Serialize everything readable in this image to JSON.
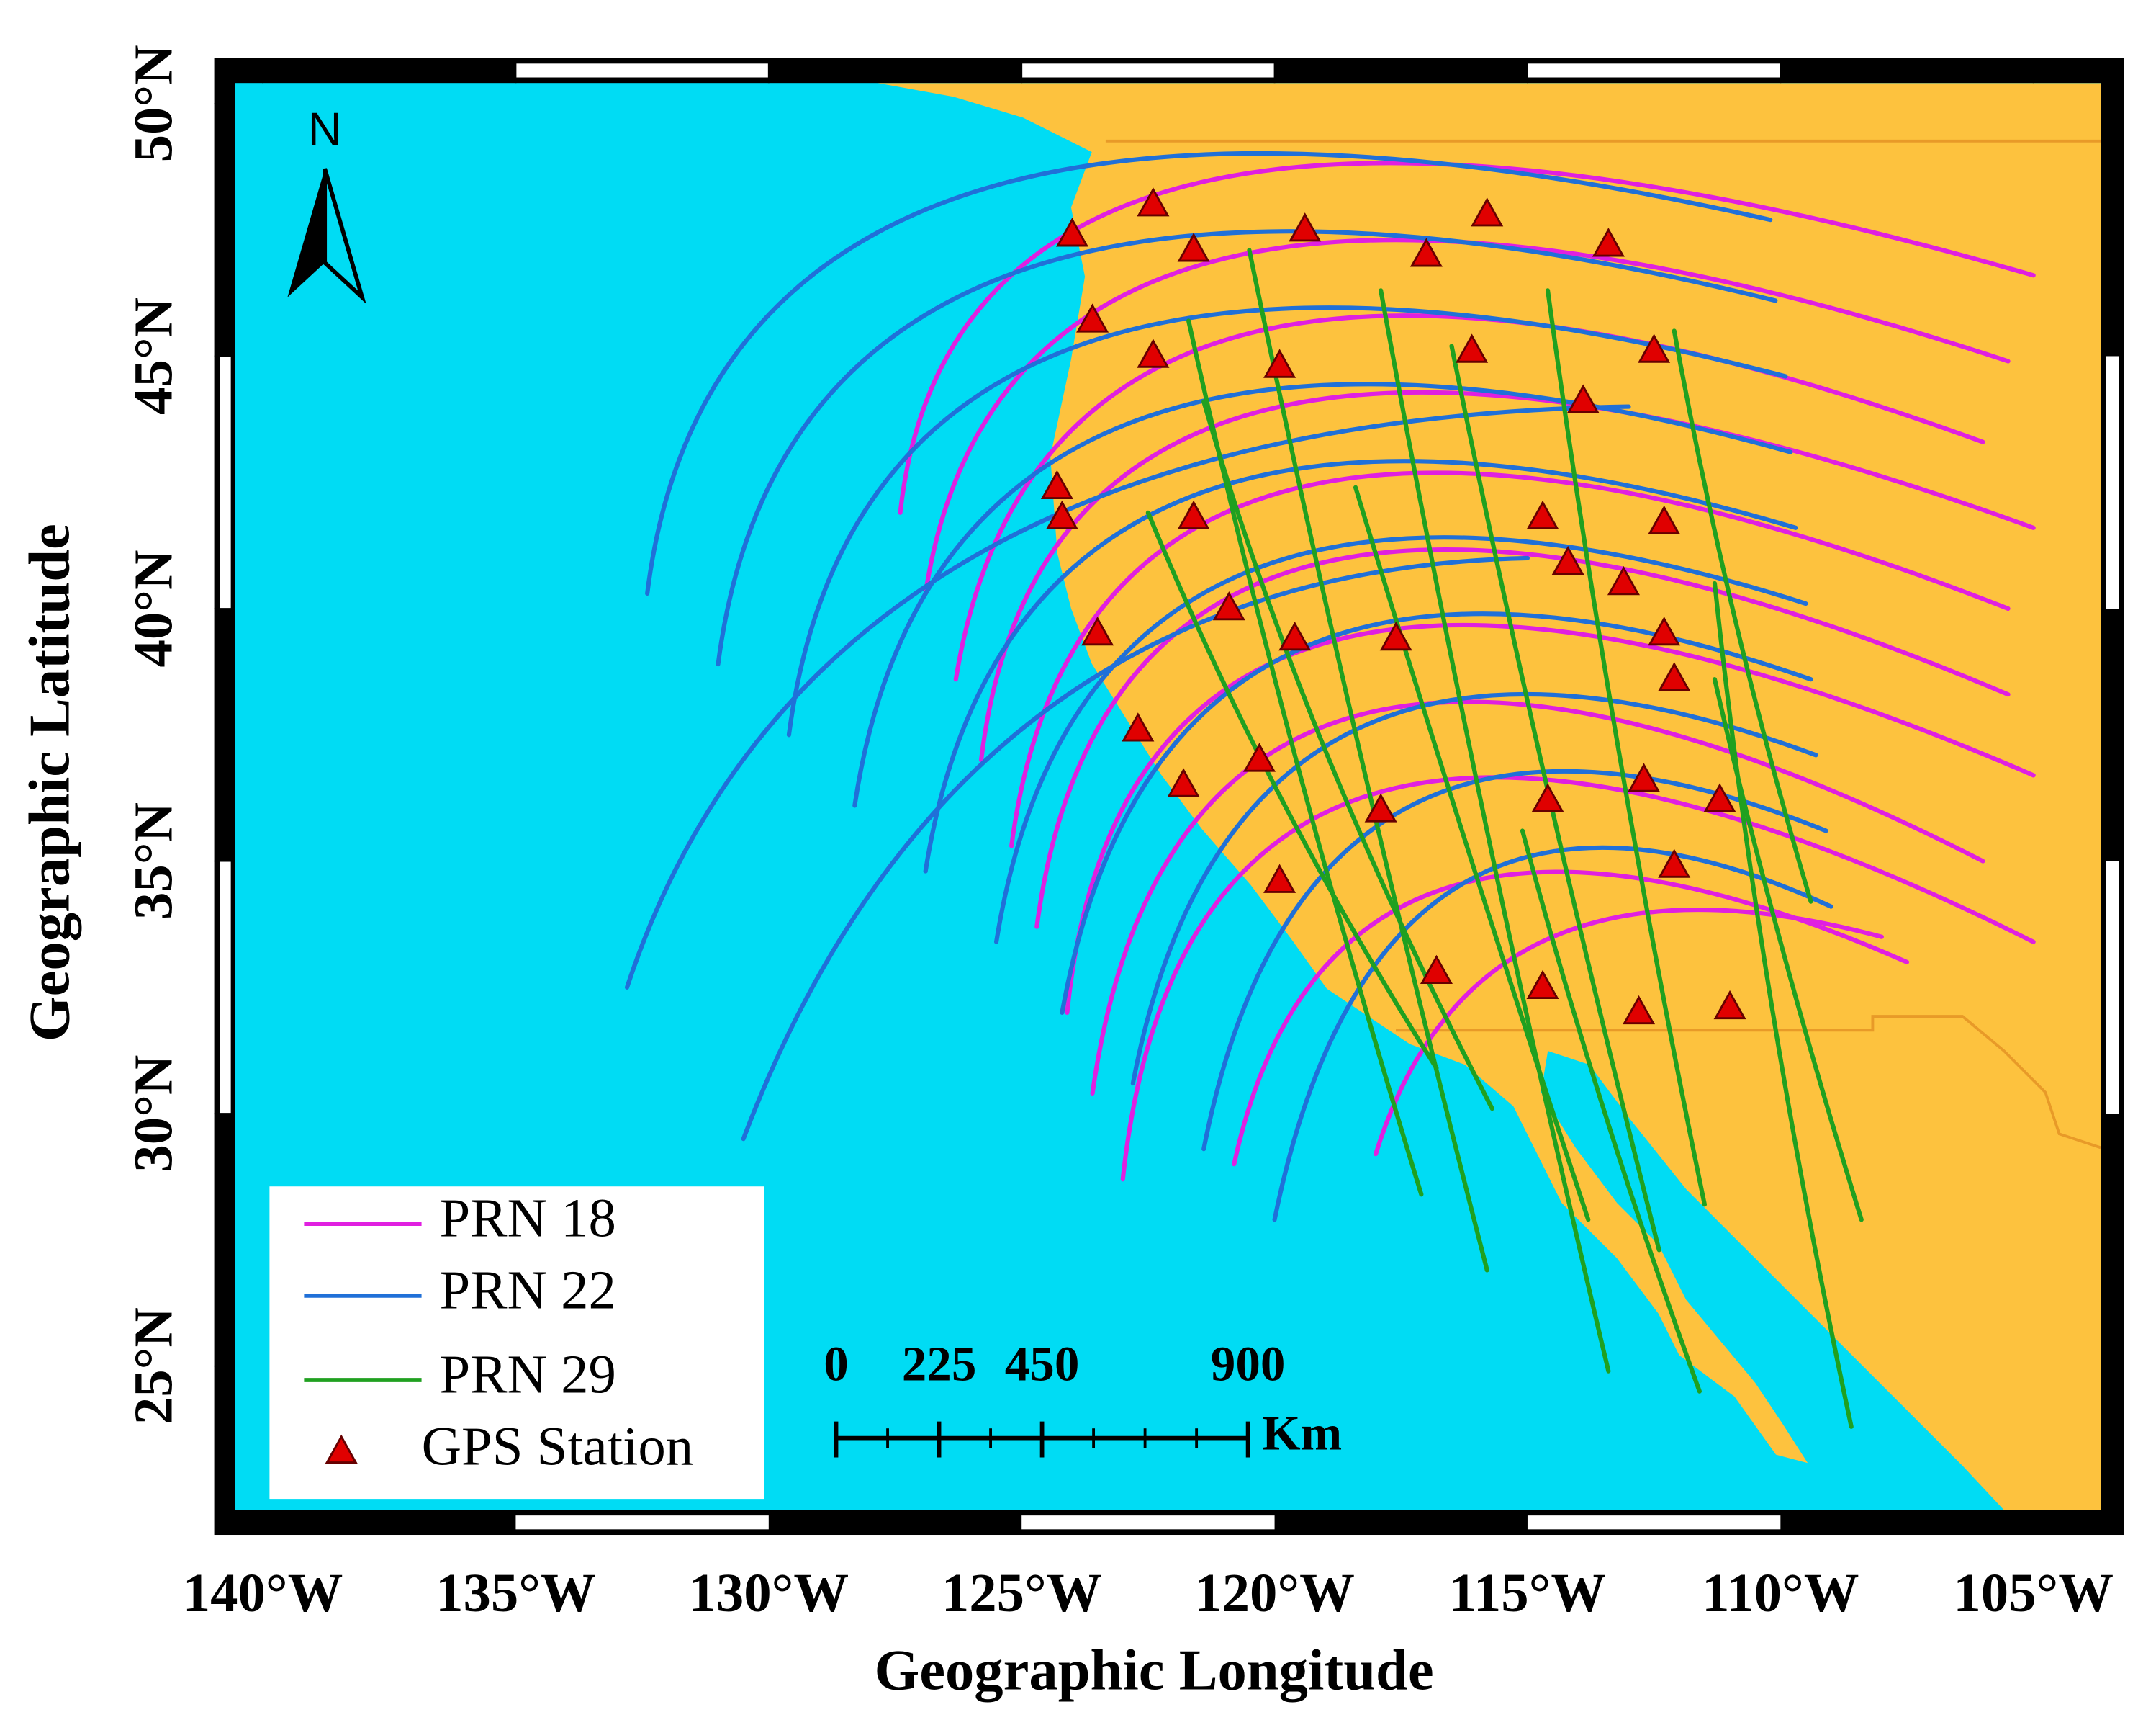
{
  "map": {
    "xlabel": "Geographic Longitude",
    "ylabel": "Geographic Latitude",
    "north": "N",
    "xlim": [
      -140.55,
      -103.67
    ],
    "ylim": [
      22.15,
      50.41
    ],
    "xticks": [
      {
        "value": -140,
        "label": "140°W"
      },
      {
        "value": -135,
        "label": "135°W"
      },
      {
        "value": -130,
        "label": "130°W"
      },
      {
        "value": -125,
        "label": "125°W"
      },
      {
        "value": -120,
        "label": "120°W"
      },
      {
        "value": -115,
        "label": "115°W"
      },
      {
        "value": -110,
        "label": "110°W"
      },
      {
        "value": -105,
        "label": "105°W"
      }
    ],
    "yticks": [
      {
        "value": 25,
        "label": "25°N"
      },
      {
        "value": 30,
        "label": "30°N"
      },
      {
        "value": 35,
        "label": "35°N"
      },
      {
        "value": 40,
        "label": "40°N"
      },
      {
        "value": 45,
        "label": "45°N"
      },
      {
        "value": 50,
        "label": "50°N"
      }
    ],
    "ocean_color": "#00dcf4",
    "land_color": "#fdc23e",
    "series": [
      {
        "name": "PRN 18",
        "color": "#e020e0",
        "tracks": [
          [
            [
              -127.4,
              41.9
            ],
            [
              -121.2,
              48.5
            ],
            [
              -105.0,
              46.6
            ]
          ],
          [
            [
              -126.9,
              40.3
            ],
            [
              -120.7,
              47.0
            ],
            [
              -105.5,
              44.9
            ]
          ],
          [
            [
              -126.3,
              38.6
            ],
            [
              -120.3,
              45.5
            ],
            [
              -106.0,
              43.3
            ]
          ],
          [
            [
              -125.8,
              37.0
            ],
            [
              -119.9,
              44.0
            ],
            [
              -105.0,
              41.6
            ]
          ],
          [
            [
              -125.2,
              35.3
            ],
            [
              -119.5,
              42.4
            ],
            [
              -105.5,
              40.0
            ]
          ],
          [
            [
              -124.7,
              33.7
            ],
            [
              -119.1,
              40.9
            ],
            [
              -105.5,
              38.3
            ]
          ],
          [
            [
              -124.1,
              32.0
            ],
            [
              -118.7,
              39.4
            ],
            [
              -105.0,
              36.7
            ]
          ],
          [
            [
              -123.6,
              30.4
            ],
            [
              -118.3,
              37.9
            ],
            [
              -106.0,
              35.0
            ]
          ],
          [
            [
              -123.0,
              28.7
            ],
            [
              -117.8,
              36.4
            ],
            [
              -105.0,
              33.4
            ]
          ],
          [
            [
              -120.8,
              29.0
            ],
            [
              -116.5,
              34.5
            ],
            [
              -107.5,
              33.0
            ]
          ],
          [
            [
              -118.0,
              29.2
            ],
            [
              -114.5,
              33.5
            ],
            [
              -108.0,
              33.5
            ]
          ]
        ]
      },
      {
        "name": "PRN 22",
        "color": "#2070d8",
        "tracks": [
          [
            [
              -132.4,
              40.3
            ],
            [
              -126.1,
              48.2
            ],
            [
              -110.2,
              47.7
            ]
          ],
          [
            [
              -131.0,
              38.9
            ],
            [
              -125.0,
              46.7
            ],
            [
              -110.1,
              46.1
            ]
          ],
          [
            [
              -129.6,
              37.5
            ],
            [
              -123.9,
              45.2
            ],
            [
              -109.9,
              44.6
            ]
          ],
          [
            [
              -128.3,
              36.1
            ],
            [
              -122.8,
              43.7
            ],
            [
              -109.8,
              43.1
            ]
          ],
          [
            [
              -126.9,
              34.8
            ],
            [
              -121.7,
              42.2
            ],
            [
              -109.7,
              41.6
            ]
          ],
          [
            [
              -125.5,
              33.4
            ],
            [
              -120.6,
              40.7
            ],
            [
              -109.5,
              40.1
            ]
          ],
          [
            [
              -124.2,
              32.0
            ],
            [
              -119.5,
              39.2
            ],
            [
              -109.4,
              38.6
            ]
          ],
          [
            [
              -122.8,
              30.6
            ],
            [
              -118.4,
              37.6
            ],
            [
              -109.3,
              37.1
            ]
          ],
          [
            [
              -121.4,
              29.3
            ],
            [
              -117.3,
              36.1
            ],
            [
              -109.1,
              35.6
            ]
          ],
          [
            [
              -120.0,
              27.9
            ],
            [
              -116.2,
              34.6
            ],
            [
              -109.0,
              34.1
            ]
          ],
          [
            [
              -132.8,
              32.5
            ],
            [
              -126.0,
              41.0
            ],
            [
              -113.0,
              44.0
            ]
          ],
          [
            [
              -130.5,
              29.5
            ],
            [
              -124.5,
              38.0
            ],
            [
              -115.0,
              41.0
            ]
          ]
        ]
      },
      {
        "name": "PRN 29",
        "color": "#20a020",
        "tracks": [
          [
            [
              -120.5,
              47.1
            ],
            [
              -118.3,
              37.1
            ],
            [
              -115.8,
              26.9
            ]
          ],
          [
            [
              -121.7,
              45.7
            ],
            [
              -119.6,
              37.1
            ],
            [
              -117.1,
              28.4
            ]
          ],
          [
            [
              -117.9,
              46.3
            ],
            [
              -115.8,
              35.6
            ],
            [
              -113.4,
              24.9
            ]
          ],
          [
            [
              -114.6,
              46.3
            ],
            [
              -113.2,
              37.2
            ],
            [
              -111.5,
              28.2
            ]
          ],
          [
            [
              -112.1,
              45.5
            ],
            [
              -110.9,
              39.8
            ],
            [
              -109.4,
              34.2
            ]
          ],
          [
            [
              -121.4,
              44.1
            ],
            [
              -119.0,
              37.2
            ],
            [
              -115.7,
              30.1
            ]
          ],
          [
            [
              -122.5,
              41.9
            ],
            [
              -119.9,
              36.3
            ],
            [
              -116.8,
              30.9
            ]
          ],
          [
            [
              -111.3,
              40.5
            ],
            [
              -110.2,
              32.3
            ],
            [
              -108.6,
              23.8
            ]
          ],
          [
            [
              -115.1,
              35.6
            ],
            [
              -113.5,
              30.1
            ],
            [
              -111.6,
              24.5
            ]
          ],
          [
            [
              -111.3,
              38.6
            ],
            [
              -110.0,
              33.4
            ],
            [
              -108.4,
              27.9
            ]
          ],
          [
            [
              -118.4,
              42.4
            ],
            [
              -116.2,
              35.3
            ],
            [
              -113.8,
              27.9
            ]
          ],
          [
            [
              -116.5,
              45.2
            ],
            [
              -114.6,
              36.4
            ],
            [
              -112.4,
              27.3
            ]
          ]
        ]
      }
    ],
    "stations": {
      "name": "GPS Station",
      "color": "#e00000",
      "points": [
        [
          -124.0,
          47.4
        ],
        [
          -122.4,
          48.0
        ],
        [
          -121.6,
          47.1
        ],
        [
          -119.4,
          47.5
        ],
        [
          -117.0,
          47.0
        ],
        [
          -115.8,
          47.8
        ],
        [
          -113.4,
          47.2
        ],
        [
          -123.6,
          45.7
        ],
        [
          -122.4,
          45.0
        ],
        [
          -119.9,
          44.8
        ],
        [
          -116.1,
          45.1
        ],
        [
          -112.5,
          45.1
        ],
        [
          -113.9,
          44.1
        ],
        [
          -124.3,
          42.4
        ],
        [
          -124.2,
          41.8
        ],
        [
          -121.6,
          41.8
        ],
        [
          -114.7,
          41.8
        ],
        [
          -112.3,
          41.7
        ],
        [
          -114.2,
          40.9
        ],
        [
          -113.1,
          40.5
        ],
        [
          -123.5,
          39.5
        ],
        [
          -120.9,
          40.0
        ],
        [
          -119.6,
          39.4
        ],
        [
          -117.6,
          39.4
        ],
        [
          -112.3,
          39.5
        ],
        [
          -112.1,
          38.6
        ],
        [
          -122.7,
          37.6
        ],
        [
          -121.8,
          36.5
        ],
        [
          -120.3,
          37.0
        ],
        [
          -117.9,
          36.0
        ],
        [
          -114.6,
          36.2
        ],
        [
          -112.7,
          36.6
        ],
        [
          -111.2,
          36.2
        ],
        [
          -119.9,
          34.6
        ],
        [
          -112.1,
          34.9
        ],
        [
          -114.7,
          32.5
        ],
        [
          -112.8,
          32.0
        ],
        [
          -111.0,
          32.1
        ],
        [
          -116.8,
          32.8
        ]
      ]
    },
    "scale_bar": {
      "ticks": [
        0,
        225,
        450,
        900
      ],
      "unit": "Km"
    }
  }
}
